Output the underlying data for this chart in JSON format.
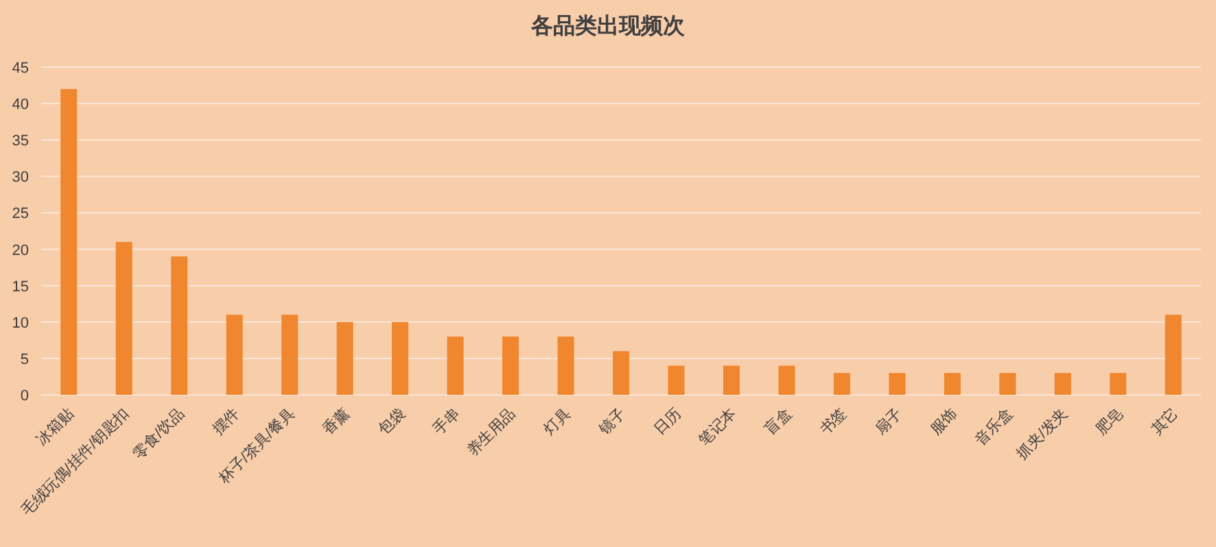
{
  "chart_data": {
    "type": "bar",
    "title": "各品类出现频次",
    "categories": [
      "冰箱贴",
      "毛绒玩偶/挂件/钥匙扣",
      "零食/饮品",
      "摆件",
      "杯子/茶具/餐具",
      "香薰",
      "包袋",
      "手串",
      "养生用品",
      "灯具",
      "镜子",
      "日历",
      "笔记本",
      "盲盒",
      "书签",
      "扇子",
      "服饰",
      "音乐盒",
      "抓夹/发夹",
      "肥皂",
      "其它"
    ],
    "values": [
      42,
      21,
      19,
      11,
      11,
      10,
      10,
      8,
      8,
      8,
      6,
      4,
      4,
      4,
      3,
      3,
      3,
      3,
      3,
      3,
      11
    ],
    "color": "#f0862e",
    "ylim": [
      0,
      45
    ],
    "yticks": [
      0,
      5,
      10,
      15,
      20,
      25,
      30,
      35,
      40,
      45
    ],
    "grid": "y"
  }
}
